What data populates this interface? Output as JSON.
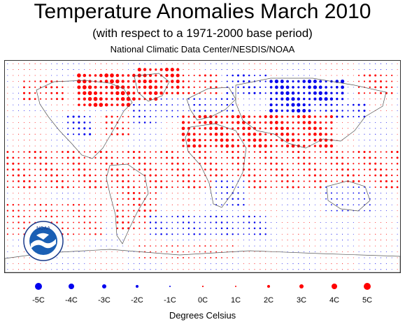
{
  "title": "Temperature Anomalies March 2010",
  "subtitle": "(with respect to a 1971-2000 base period)",
  "source": "National Climatic Data Center/NESDIS/NOAA",
  "logo_text": "NOAA",
  "colors": {
    "warm": "#ff0000",
    "cold": "#0000ee",
    "coast": "#555555",
    "frame": "#333333"
  },
  "legend": {
    "caption": "Degrees Celsius",
    "items": [
      {
        "label": "-5C",
        "value": -5
      },
      {
        "label": "-4C",
        "value": -4
      },
      {
        "label": "-3C",
        "value": -3
      },
      {
        "label": "-2C",
        "value": -2
      },
      {
        "label": "-1C",
        "value": -1
      },
      {
        "label": "0C",
        "value": 0
      },
      {
        "label": "1C",
        "value": 1
      },
      {
        "label": "2C",
        "value": 2
      },
      {
        "label": "3C",
        "value": 3
      },
      {
        "label": "4C",
        "value": 4
      },
      {
        "label": "5C",
        "value": 5
      }
    ]
  },
  "map": {
    "projection": "equirectangular",
    "grid_step_degrees": 5,
    "anomaly_regions_celsius": [
      {
        "lon": [
          -115,
          -60
        ],
        "lat": [
          50,
          80
        ],
        "value": 4.5
      },
      {
        "lon": [
          -60,
          -20
        ],
        "lat": [
          55,
          85
        ],
        "value": 4
      },
      {
        "lon": [
          -165,
          -125
        ],
        "lat": [
          55,
          75
        ],
        "value": 2
      },
      {
        "lon": [
          -90,
          -65
        ],
        "lat": [
          25,
          45
        ],
        "value": 2
      },
      {
        "lon": [
          -125,
          -100
        ],
        "lat": [
          25,
          45
        ],
        "value": -2
      },
      {
        "lon": [
          -65,
          -40
        ],
        "lat": [
          35,
          55
        ],
        "value": -1.5
      },
      {
        "lon": [
          -40,
          -10
        ],
        "lat": [
          40,
          60
        ],
        "value": -1
      },
      {
        "lon": [
          -20,
          15
        ],
        "lat": [
          60,
          80
        ],
        "value": 2
      },
      {
        "lon": [
          -10,
          30
        ],
        "lat": [
          40,
          60
        ],
        "value": -1.5
      },
      {
        "lon": [
          20,
          60
        ],
        "lat": [
          60,
          80
        ],
        "value": -2
      },
      {
        "lon": [
          60,
          130
        ],
        "lat": [
          45,
          75
        ],
        "value": -4
      },
      {
        "lon": [
          100,
          150
        ],
        "lat": [
          40,
          55
        ],
        "value": -2
      },
      {
        "lon": [
          140,
          175
        ],
        "lat": [
          60,
          80
        ],
        "value": 2
      },
      {
        "lon": [
          -20,
          120
        ],
        "lat": [
          15,
          45
        ],
        "value": 3.5
      },
      {
        "lon": [
          -180,
          180
        ],
        "lat": [
          -20,
          15
        ],
        "value": 2
      },
      {
        "lon": [
          -80,
          -40
        ],
        "lat": [
          -55,
          -20
        ],
        "value": 2
      },
      {
        "lon": [
          10,
          40
        ],
        "lat": [
          -35,
          -10
        ],
        "value": -1.5
      },
      {
        "lon": [
          -180,
          -90
        ],
        "lat": [
          -60,
          -30
        ],
        "value": 1.5
      },
      {
        "lon": [
          -50,
          60
        ],
        "lat": [
          -60,
          -40
        ],
        "value": -1.5
      },
      {
        "lon": [
          110,
          155
        ],
        "lat": [
          -40,
          -15
        ],
        "value": -1
      },
      {
        "lon": [
          -60,
          30
        ],
        "lat": [
          -80,
          -65
        ],
        "value": 1
      }
    ]
  }
}
